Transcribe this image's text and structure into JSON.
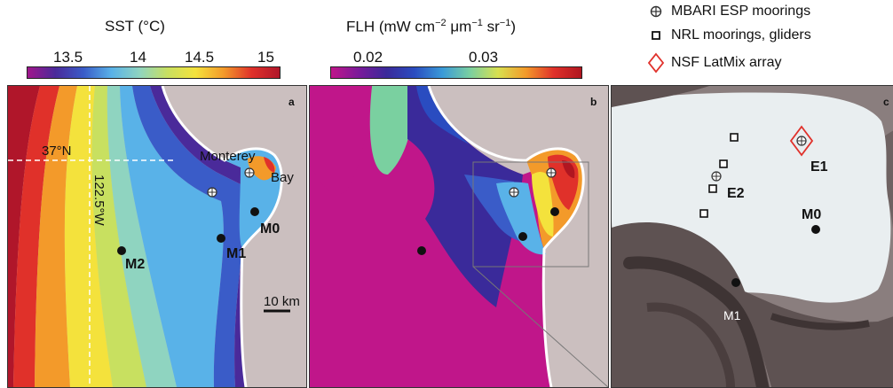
{
  "sst_colorbar": {
    "title": "SST (°C)",
    "ticks": [
      "13.5",
      "14",
      "14.5",
      "15"
    ],
    "gradient": [
      "#a0168c",
      "#4a2a9a",
      "#3a5cc8",
      "#59b2e8",
      "#8fd4c0",
      "#c8e060",
      "#f4e23c",
      "#f39a2a",
      "#e0312a",
      "#b0162a"
    ]
  },
  "flh_colorbar": {
    "title_prefix": "FLH (mW cm",
    "exp1": "−2",
    "title_mid": " μm",
    "exp2": "−1",
    "title_mid2": " sr",
    "exp3": "−1",
    "title_suffix": ")",
    "ticks": [
      "0.02",
      "0.03"
    ],
    "gradient": [
      "#c0168a",
      "#7a1a9a",
      "#3a2a9a",
      "#2a4cc0",
      "#3a9ad8",
      "#7ad0a0",
      "#d8e050",
      "#f39a2a",
      "#e0312a",
      "#b01620"
    ]
  },
  "legend": [
    {
      "icon": "crosshair-circle",
      "label": "MBARI ESP moorings",
      "color": "#333333"
    },
    {
      "icon": "open-square",
      "label": "NRL moorings, gliders",
      "color": "#111111"
    },
    {
      "icon": "red-diamond",
      "label": "NSF LatMix array",
      "color": "#e0302a"
    }
  ],
  "panel_a": {
    "label": "a",
    "lat_label": "37°N",
    "lon_label": "122.5°W",
    "place_label_1": "Monterey",
    "place_label_2": "Bay",
    "stations": [
      "M0",
      "M1",
      "M2"
    ],
    "scale_label": "10 km"
  },
  "panel_b": {
    "label": "b"
  },
  "panel_c": {
    "label": "c",
    "stations": [
      "E1",
      "E2",
      "M0",
      "M1"
    ]
  },
  "colors": {
    "land": "#cbbfbf",
    "coast": "#ffffff",
    "inset_box": "#777777"
  }
}
